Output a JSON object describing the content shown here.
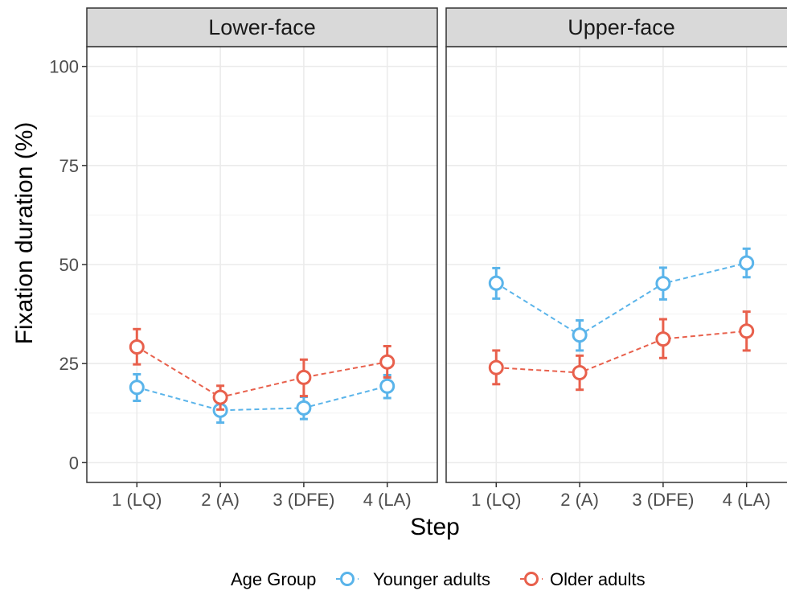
{
  "chart_data": {
    "type": "line",
    "facet_labels": [
      "Lower-face",
      "Upper-face"
    ],
    "categories": [
      "1 (LQ)",
      "2 (A)",
      "3 (DFE)",
      "4 (LA)"
    ],
    "xlabel": "Step",
    "ylabel": "Fixation duration (%)",
    "ylim": [
      -5,
      105
    ],
    "yticks": [
      0,
      25,
      50,
      75,
      100
    ],
    "grid": true,
    "legend": {
      "title": "Age Group",
      "placement": "bottom",
      "entries": [
        "Younger adults",
        "Older adults"
      ]
    },
    "colors": {
      "Younger adults": "#5ab4ea",
      "Older adults": "#e8604c"
    },
    "panels": [
      {
        "label": "Lower-face",
        "series": [
          {
            "name": "Younger adults",
            "values": [
              19.0,
              13.2,
              13.8,
              19.3
            ],
            "error_low": [
              15.6,
              10.1,
              11.0,
              16.3
            ],
            "error_high": [
              22.3,
              16.1,
              16.6,
              22.1
            ]
          },
          {
            "name": "Older adults",
            "values": [
              29.2,
              16.5,
              21.5,
              25.4
            ],
            "error_low": [
              24.8,
              13.4,
              16.8,
              21.5
            ],
            "error_high": [
              33.7,
              19.4,
              26.0,
              29.4
            ]
          }
        ]
      },
      {
        "label": "Upper-face",
        "series": [
          {
            "name": "Younger adults",
            "values": [
              45.3,
              32.2,
              45.2,
              50.4
            ],
            "error_low": [
              41.4,
              28.3,
              41.2,
              46.8
            ],
            "error_high": [
              49.1,
              35.9,
              49.2,
              54.0
            ]
          },
          {
            "name": "Older adults",
            "values": [
              24.0,
              22.7,
              31.2,
              33.2
            ],
            "error_low": [
              19.8,
              18.4,
              26.4,
              28.3
            ],
            "error_high": [
              28.3,
              27.0,
              36.2,
              38.1
            ]
          }
        ]
      }
    ]
  }
}
